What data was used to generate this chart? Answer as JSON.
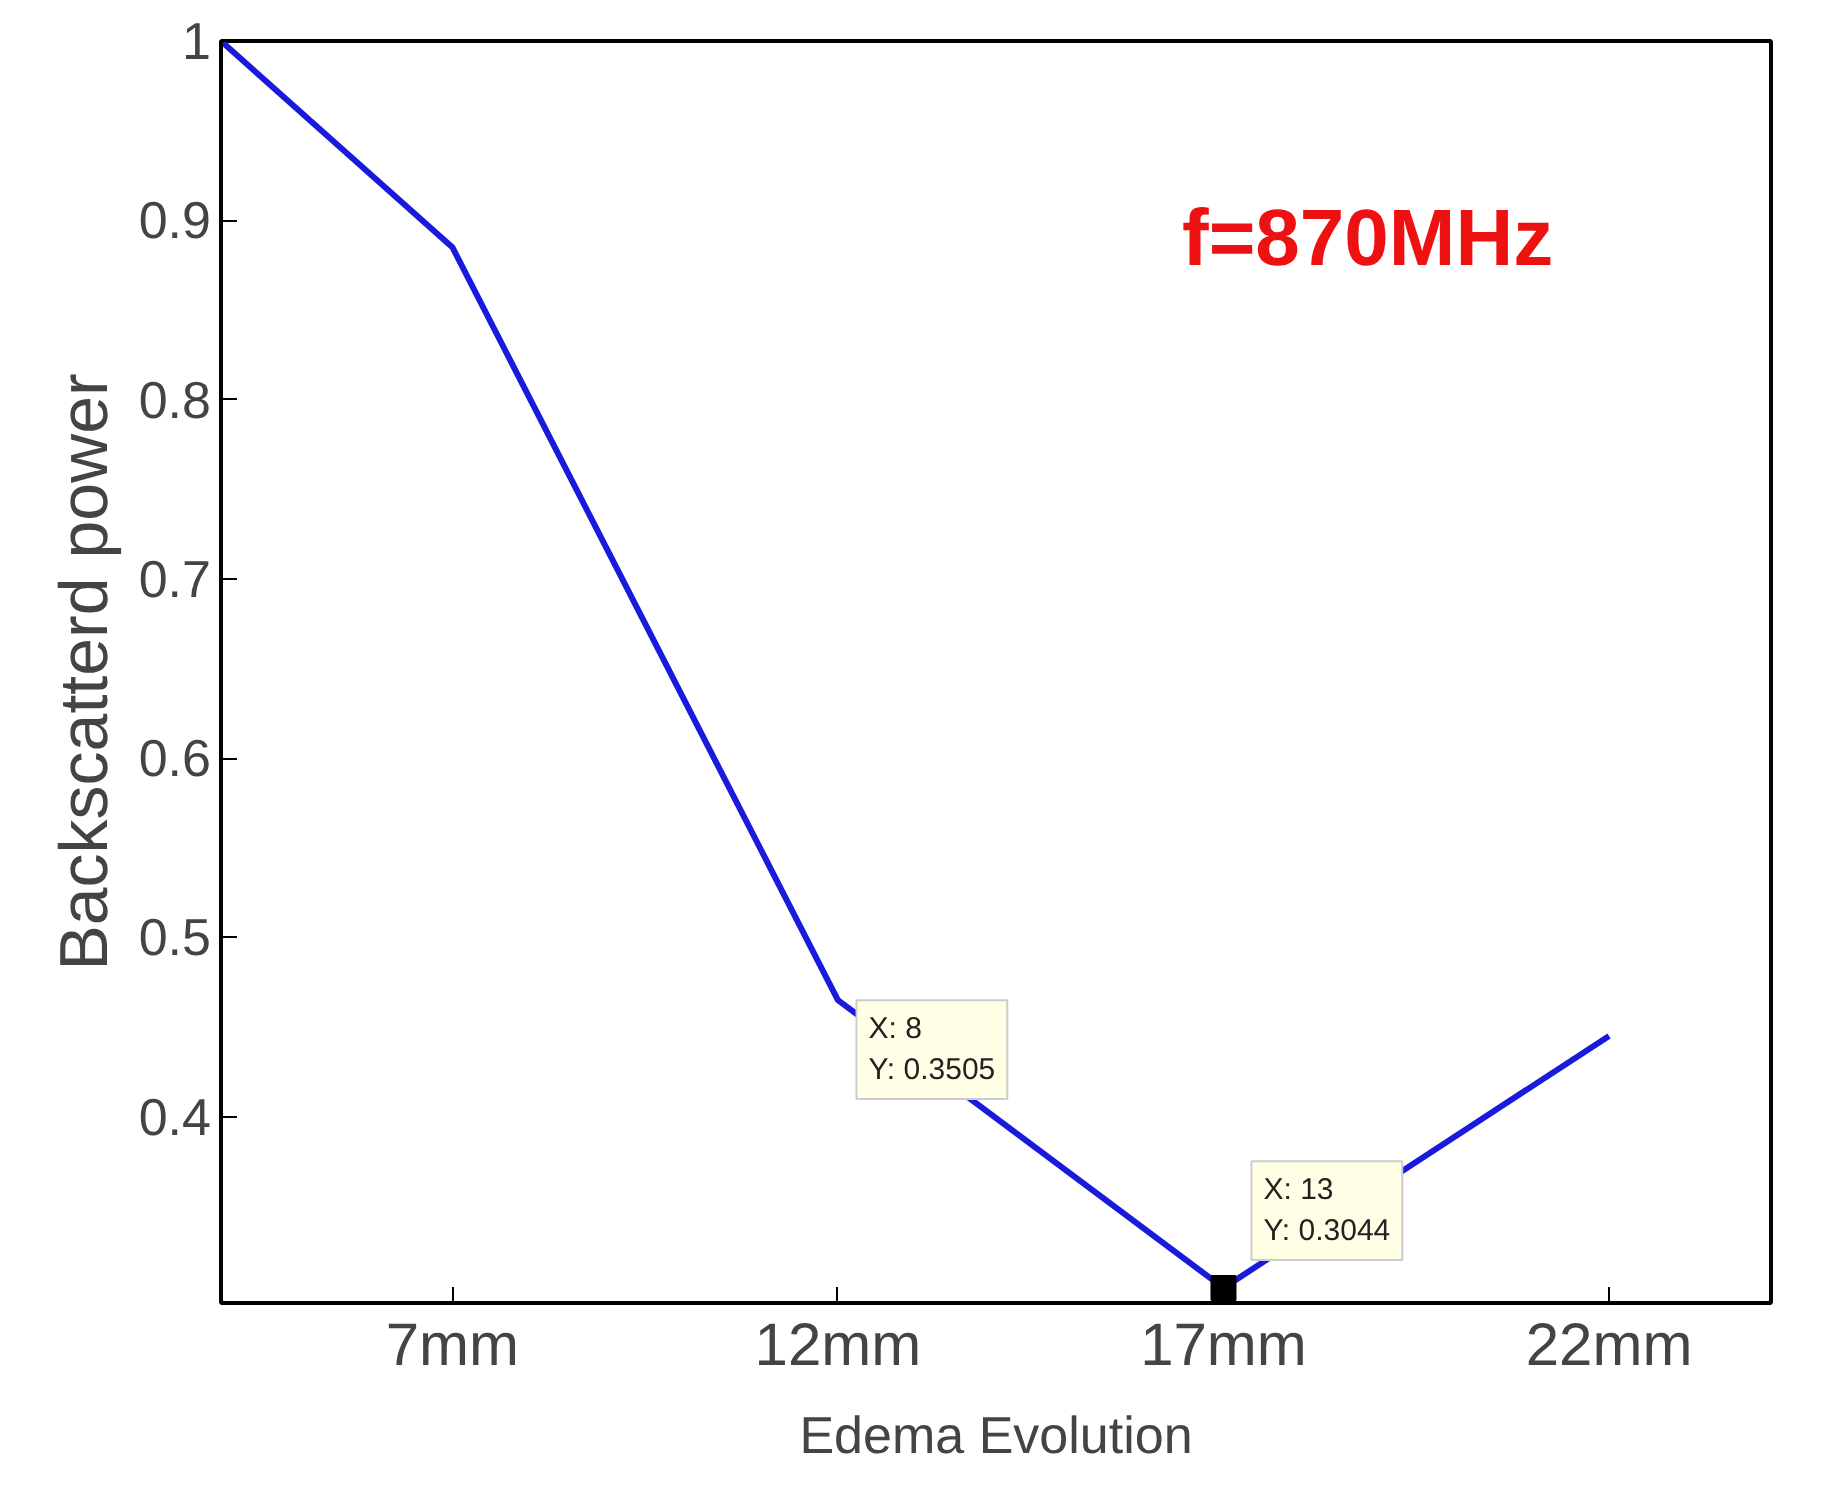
{
  "chart_data": {
    "type": "line",
    "xlabel": "Edema Evolution",
    "ylabel": "Backscatterd power",
    "x": [
      4,
      7,
      12,
      17,
      22
    ],
    "series": [
      {
        "color": "#1a1adc",
        "values": [
          1.0,
          0.885,
          0.465,
          0.3044,
          0.445
        ]
      }
    ],
    "xlim": [
      4,
      24.1
    ],
    "ylim": [
      0.296,
      1.0
    ],
    "xticks": [
      {
        "value": 7,
        "label": "7mm"
      },
      {
        "value": 12,
        "label": "12mm"
      },
      {
        "value": 17,
        "label": "17mm"
      },
      {
        "value": 22,
        "label": "22mm"
      }
    ],
    "yticks": [
      0.4,
      0.5,
      0.6,
      0.7,
      0.8,
      0.9,
      1
    ],
    "grid": false,
    "marker": "none",
    "line_style": "solid",
    "annotations": [
      "f=870MHz",
      "X: 8\nY: 0.3505",
      {
        "text": "X: 13\nY: 0.3044",
        "x": 17,
        "y": 0.3044
      }
    ]
  }
}
